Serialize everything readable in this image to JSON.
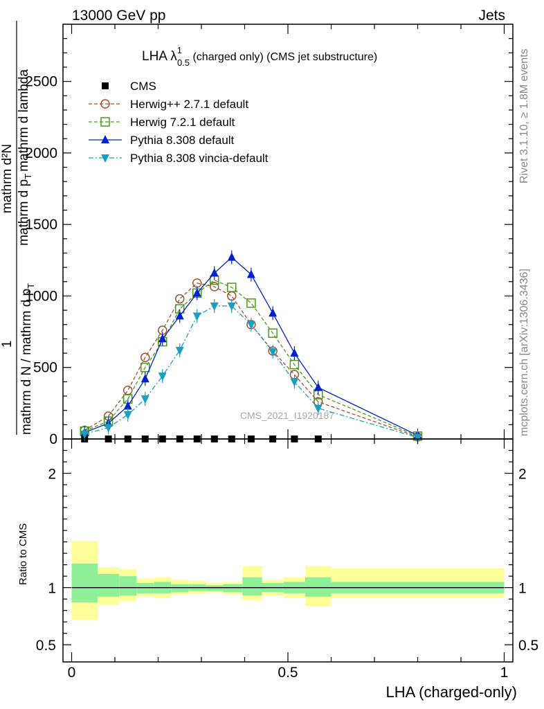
{
  "header": {
    "energy": "13000 GeV pp",
    "process": "Jets"
  },
  "side_labels": {
    "rivet": "Rivet 3.1.10, ≥ 1.8M events",
    "mcplots": "mcplots.cern.ch [arXiv:1306.3436]"
  },
  "watermark": "CMS_2021_I1920187",
  "title": {
    "main": "LHA λ",
    "sup": "1",
    "sub": "0.5",
    "rest": " (charged only) (CMS jet substructure)"
  },
  "ylabel": {
    "numerator": "mathrm d²N",
    "denominator_l1": "mathrm d p",
    "denominator_sub": "T",
    "denominator_l2": "mathrm d lambda",
    "one": "1",
    "outer_den": "mathrm d N / mathrm d p",
    "outer_sub": "T"
  },
  "ratio_ylabel": "Ratio to CMS",
  "xlabel": "LHA (charged-only)",
  "colors": {
    "cms": "#000000",
    "herwigpp": "#a0522d",
    "herwig7": "#4a9a1f",
    "pythia": "#0022cc",
    "vincia": "#1a9fc0",
    "band_inner": "#8ff09a",
    "band_outer": "#ffff99"
  },
  "chart_data": [
    {
      "type": "line",
      "name": "main",
      "xlim": [
        -0.02,
        1.02
      ],
      "ylim": [
        0,
        2900
      ],
      "xticks": [
        0,
        0.5,
        1
      ],
      "xticklabels": [
        "0",
        "0.5",
        "1"
      ],
      "yticks": [
        0,
        500,
        1000,
        1500,
        2000,
        2500
      ],
      "yticklabels": [
        "0",
        "500",
        "1000",
        "1500",
        "2000",
        "2500"
      ],
      "x": [
        0.03,
        0.085,
        0.13,
        0.17,
        0.21,
        0.25,
        0.29,
        0.33,
        0.37,
        0.415,
        0.465,
        0.515,
        0.57,
        0.8
      ],
      "series": [
        {
          "name": "CMS",
          "key": "cms",
          "marker": "square",
          "values": [
            0,
            0,
            0,
            0,
            0,
            0,
            0,
            0,
            0,
            0,
            0,
            0,
            0,
            null
          ]
        },
        {
          "name": "Herwig++ 2.7.1 default",
          "key": "herwigpp",
          "marker": "circle",
          "dash": "5,3",
          "values": [
            60,
            160,
            340,
            570,
            760,
            980,
            1090,
            1065,
            1000,
            800,
            615,
            450,
            260,
            15
          ]
        },
        {
          "name": "Herwig 7.2.1 default",
          "key": "herwig7",
          "marker": "opensquare",
          "dash": "5,3",
          "values": [
            55,
            125,
            280,
            500,
            680,
            910,
            1020,
            1110,
            1060,
            950,
            740,
            520,
            310,
            20
          ]
        },
        {
          "name": "Pythia 8.308 default",
          "key": "pythia",
          "marker": "triangle-up",
          "dash": "",
          "values": [
            45,
            110,
            230,
            420,
            700,
            860,
            1020,
            1160,
            1270,
            1150,
            880,
            600,
            360,
            25
          ]
        },
        {
          "name": "Pythia 8.308 vincia-default",
          "key": "vincia",
          "marker": "triangle-down",
          "dash": "7,3,2,3",
          "values": [
            35,
            80,
            170,
            280,
            440,
            620,
            860,
            930,
            930,
            800,
            610,
            400,
            215,
            10
          ]
        }
      ]
    },
    {
      "type": "area",
      "name": "ratio",
      "xlim": [
        -0.02,
        1.02
      ],
      "ylim": [
        0.35,
        2.3
      ],
      "yticks": [
        0.5,
        1,
        2
      ],
      "yticklabels": [
        "0.5",
        "1",
        "2"
      ],
      "bins": [
        {
          "lo": 0.0,
          "hi": 0.06,
          "inner": [
            0.87,
            1.21
          ],
          "outer": [
            0.72,
            1.41
          ]
        },
        {
          "lo": 0.06,
          "hi": 0.11,
          "inner": [
            0.92,
            1.12
          ],
          "outer": [
            0.85,
            1.18
          ]
        },
        {
          "lo": 0.11,
          "hi": 0.15,
          "inner": [
            0.93,
            1.1
          ],
          "outer": [
            0.88,
            1.16
          ]
        },
        {
          "lo": 0.15,
          "hi": 0.19,
          "inner": [
            0.95,
            1.04
          ],
          "outer": [
            0.92,
            1.08
          ]
        },
        {
          "lo": 0.19,
          "hi": 0.23,
          "inner": [
            0.95,
            1.05
          ],
          "outer": [
            0.91,
            1.09
          ]
        },
        {
          "lo": 0.23,
          "hi": 0.27,
          "inner": [
            0.96,
            1.03
          ],
          "outer": [
            0.94,
            1.07
          ]
        },
        {
          "lo": 0.27,
          "hi": 0.31,
          "inner": [
            0.97,
            1.03
          ],
          "outer": [
            0.95,
            1.06
          ]
        },
        {
          "lo": 0.31,
          "hi": 0.35,
          "inner": [
            0.97,
            1.02
          ],
          "outer": [
            0.96,
            1.04
          ]
        },
        {
          "lo": 0.35,
          "hi": 0.395,
          "inner": [
            0.96,
            1.03
          ],
          "outer": [
            0.94,
            1.05
          ]
        },
        {
          "lo": 0.395,
          "hi": 0.44,
          "inner": [
            0.93,
            1.09
          ],
          "outer": [
            0.89,
            1.19
          ]
        },
        {
          "lo": 0.44,
          "hi": 0.49,
          "inner": [
            0.96,
            1.04
          ],
          "outer": [
            0.93,
            1.07
          ]
        },
        {
          "lo": 0.49,
          "hi": 0.54,
          "inner": [
            0.95,
            1.05
          ],
          "outer": [
            0.91,
            1.09
          ]
        },
        {
          "lo": 0.54,
          "hi": 0.6,
          "inner": [
            0.92,
            1.09
          ],
          "outer": [
            0.84,
            1.19
          ]
        },
        {
          "lo": 0.6,
          "hi": 1.0,
          "inner": [
            0.95,
            1.05
          ],
          "outer": [
            0.91,
            1.17
          ]
        }
      ],
      "reference": 1
    }
  ]
}
